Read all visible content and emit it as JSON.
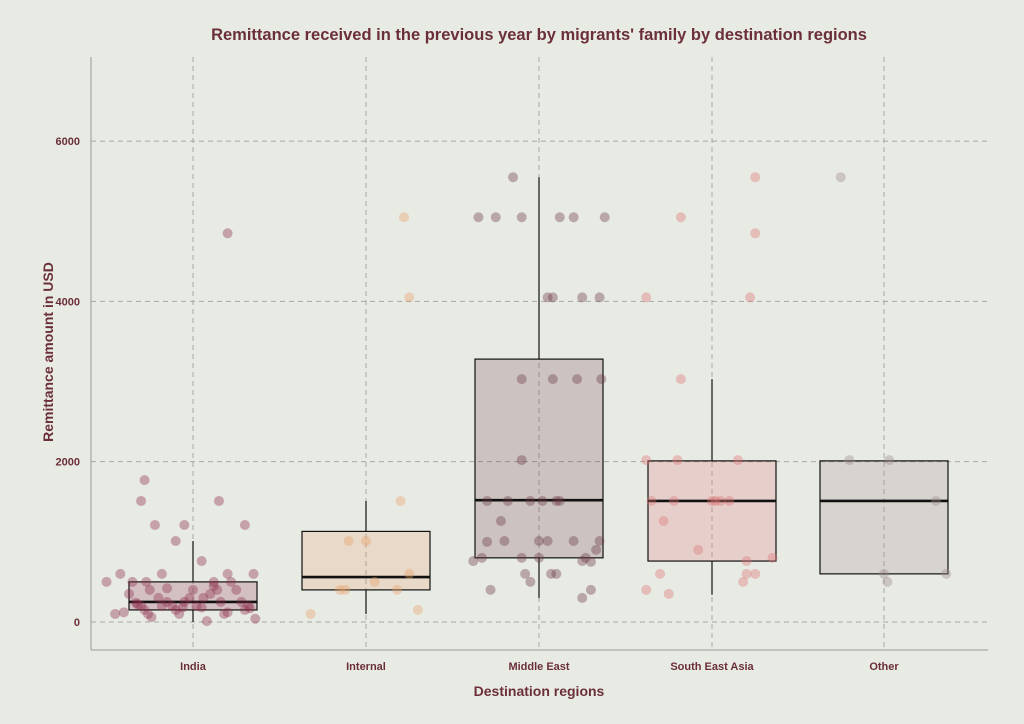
{
  "chart_data": {
    "type": "box",
    "title": "Remittance received in the previous year by migrants' family by destination regions",
    "xlabel": "Destination regions",
    "ylabel": "Remittance amount in USD",
    "ylim": [
      -350,
      7050
    ],
    "yticks": [
      0,
      2000,
      4000,
      6000
    ],
    "grid": true,
    "categories": [
      "India",
      "Internal",
      "Middle East",
      "South East Asia",
      "Other"
    ],
    "colors": [
      "#8c2d4a",
      "#e8a066",
      "#6b3a44",
      "#dd7373",
      "#9a8a8a"
    ],
    "boxes": [
      {
        "q1": 150,
        "median": 250,
        "q3": 500,
        "whisker_low": 0,
        "whisker_high": 1010
      },
      {
        "q1": 400,
        "median": 560,
        "q3": 1130,
        "whisker_low": 100,
        "whisker_high": 1510
      },
      {
        "q1": 800,
        "median": 1520,
        "q3": 3280,
        "whisker_low": 300,
        "whisker_high": 5550
      },
      {
        "q1": 760,
        "median": 1510,
        "q3": 2010,
        "whisker_low": 340,
        "whisker_high": 3030
      },
      {
        "q1": 600,
        "median": 1510,
        "q3": 2010,
        "whisker_low": 600,
        "whisker_high": 2010
      }
    ],
    "points": [
      [
        [
          -0.5,
          500
        ],
        [
          -0.45,
          100
        ],
        [
          -0.42,
          600
        ],
        [
          -0.37,
          350
        ],
        [
          -0.35,
          500
        ],
        [
          -0.33,
          240
        ],
        [
          -0.3,
          1510
        ],
        [
          -0.28,
          1770
        ],
        [
          -0.27,
          500
        ],
        [
          -0.25,
          400
        ],
        [
          -0.22,
          1210
        ],
        [
          -0.18,
          200
        ],
        [
          -0.1,
          1010
        ],
        [
          -0.05,
          1210
        ],
        [
          0.05,
          760
        ],
        [
          0.15,
          1510
        ],
        [
          0.2,
          4850
        ],
        [
          0.22,
          500
        ],
        [
          0.3,
          1210
        ],
        [
          0.35,
          600
        ],
        [
          -0.3,
          200
        ],
        [
          -0.28,
          150
        ],
        [
          -0.26,
          100
        ],
        [
          -0.24,
          60
        ],
        [
          -0.2,
          300
        ],
        [
          -0.18,
          600
        ],
        [
          -0.15,
          250
        ],
        [
          -0.12,
          200
        ],
        [
          -0.1,
          150
        ],
        [
          -0.08,
          100
        ],
        [
          -0.05,
          250
        ],
        [
          -0.02,
          300
        ],
        [
          0.0,
          400
        ],
        [
          0.02,
          200
        ],
        [
          0.05,
          180
        ],
        [
          0.08,
          10
        ],
        [
          0.1,
          350
        ],
        [
          0.12,
          500
        ],
        [
          0.14,
          400
        ],
        [
          0.16,
          250
        ],
        [
          0.18,
          100
        ],
        [
          0.2,
          600
        ],
        [
          0.25,
          400
        ],
        [
          0.28,
          250
        ],
        [
          0.3,
          150
        ],
        [
          0.32,
          200
        ],
        [
          0.36,
          40
        ],
        [
          -0.4,
          120
        ],
        [
          -0.32,
          220
        ],
        [
          0.06,
          300
        ],
        [
          0.12,
          450
        ],
        [
          0.2,
          120
        ],
        [
          0.33,
          170
        ],
        [
          -0.15,
          420
        ],
        [
          -0.06,
          180
        ]
      ],
      [
        [
          -0.32,
          100
        ],
        [
          -0.15,
          400
        ],
        [
          -0.1,
          1010
        ],
        [
          0.0,
          1010
        ],
        [
          0.05,
          500
        ],
        [
          0.2,
          1510
        ],
        [
          0.22,
          5050
        ],
        [
          0.25,
          4050
        ],
        [
          0.25,
          600
        ],
        [
          0.3,
          150
        ],
        [
          -0.12,
          400
        ],
        [
          0.18,
          400
        ]
      ],
      [
        [
          -0.38,
          760
        ],
        [
          -0.35,
          5050
        ],
        [
          -0.33,
          800
        ],
        [
          -0.3,
          1000
        ],
        [
          -0.28,
          400
        ],
        [
          -0.22,
          1260
        ],
        [
          -0.25,
          5050
        ],
        [
          -0.2,
          1010
        ],
        [
          -0.18,
          1510
        ],
        [
          -0.15,
          5550
        ],
        [
          -0.1,
          5050
        ],
        [
          -0.1,
          3030
        ],
        [
          -0.05,
          500
        ],
        [
          -0.05,
          1510
        ],
        [
          -0.1,
          800
        ],
        [
          -0.1,
          2020
        ],
        [
          0.0,
          1010
        ],
        [
          0.02,
          1510
        ],
        [
          0.05,
          1010
        ],
        [
          0.05,
          4050
        ],
        [
          0.08,
          4050
        ],
        [
          0.08,
          3030
        ],
        [
          0.1,
          1510
        ],
        [
          0.12,
          1510
        ],
        [
          0.12,
          5050
        ],
        [
          0.2,
          5050
        ],
        [
          0.22,
          3030
        ],
        [
          0.25,
          4050
        ],
        [
          0.25,
          300
        ],
        [
          0.27,
          800
        ],
        [
          0.3,
          400
        ],
        [
          0.33,
          900
        ],
        [
          0.35,
          4050
        ],
        [
          0.36,
          3030
        ],
        [
          0.38,
          5050
        ],
        [
          0.35,
          1010
        ],
        [
          0.1,
          600
        ],
        [
          0.07,
          600
        ],
        [
          -0.08,
          600
        ],
        [
          0.2,
          1010
        ],
        [
          0.0,
          800
        ],
        [
          0.25,
          760
        ],
        [
          0.3,
          750
        ],
        [
          -0.3,
          1510
        ]
      ],
      [
        [
          -0.38,
          400
        ],
        [
          -0.38,
          4050
        ],
        [
          -0.38,
          2020
        ],
        [
          -0.35,
          1510
        ],
        [
          -0.3,
          600
        ],
        [
          -0.28,
          1260
        ],
        [
          -0.25,
          350
        ],
        [
          -0.22,
          1510
        ],
        [
          -0.2,
          2020
        ],
        [
          -0.18,
          3030
        ],
        [
          -0.18,
          5050
        ],
        [
          -0.08,
          900
        ],
        [
          0.0,
          1510
        ],
        [
          0.02,
          1510
        ],
        [
          0.05,
          1510
        ],
        [
          0.1,
          1510
        ],
        [
          0.15,
          2020
        ],
        [
          0.18,
          500
        ],
        [
          0.2,
          600
        ],
        [
          0.2,
          760
        ],
        [
          0.22,
          4050
        ],
        [
          0.25,
          4850
        ],
        [
          0.25,
          5550
        ],
        [
          0.25,
          600
        ],
        [
          0.35,
          800
        ]
      ],
      [
        [
          -0.25,
          5550
        ],
        [
          -0.2,
          2020
        ],
        [
          0.0,
          600
        ],
        [
          0.02,
          500
        ],
        [
          0.03,
          2020
        ],
        [
          0.3,
          1510
        ],
        [
          0.36,
          600
        ]
      ]
    ]
  }
}
